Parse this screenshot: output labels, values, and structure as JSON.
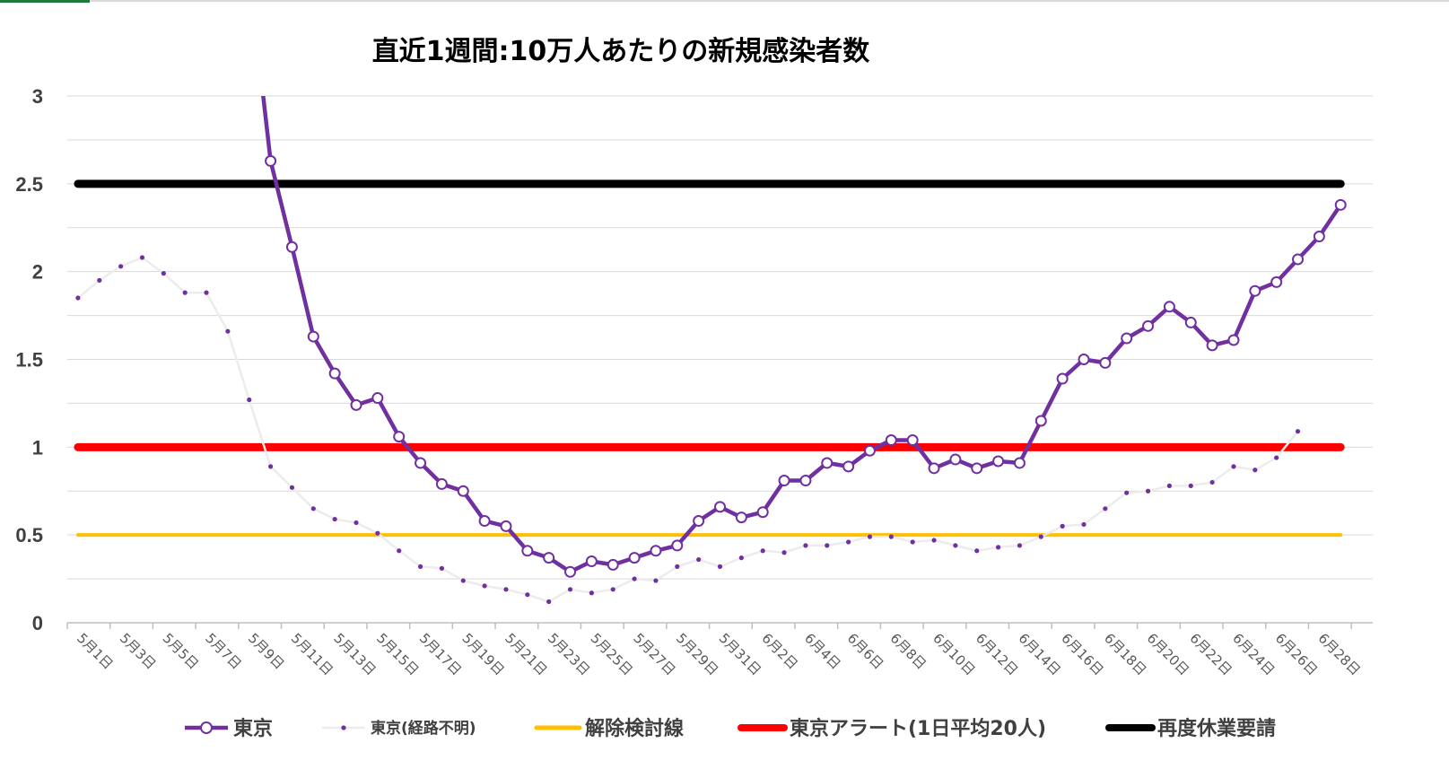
{
  "chart_data": {
    "type": "line",
    "title": "直近1週間:10万人あたりの新規感染者数",
    "xlabel": "",
    "ylabel": "",
    "ylim": [
      0,
      3
    ],
    "yticks": [
      "0",
      "0.5",
      "1",
      "1.5",
      "2",
      "2.5",
      "3"
    ],
    "grid": true,
    "legend_position": "bottom",
    "x": [
      "5月1日",
      "5月2日",
      "5月3日",
      "5月4日",
      "5月5日",
      "5月6日",
      "5月7日",
      "5月8日",
      "5月9日",
      "5月10日",
      "5月11日",
      "5月12日",
      "5月13日",
      "5月14日",
      "5月15日",
      "5月16日",
      "5月17日",
      "5月18日",
      "5月19日",
      "5月20日",
      "5月21日",
      "5月22日",
      "5月23日",
      "5月24日",
      "5月25日",
      "5月26日",
      "5月27日",
      "5月28日",
      "5月29日",
      "5月30日",
      "5月31日",
      "6月1日",
      "6月2日",
      "6月3日",
      "6月4日",
      "6月5日",
      "6月6日",
      "6月7日",
      "6月8日",
      "6月9日",
      "6月10日",
      "6月11日",
      "6月12日",
      "6月13日",
      "6月14日",
      "6月15日",
      "6月16日",
      "6月17日",
      "6月18日",
      "6月19日",
      "6月20日",
      "6月21日",
      "6月22日",
      "6月23日",
      "6月24日",
      "6月25日",
      "6月26日",
      "6月27日",
      "6月28日",
      "6月29日",
      "6月30日"
    ],
    "x_tick_labels": [
      "5月1日",
      "5月3日",
      "5月5日",
      "5月7日",
      "5月9日",
      "5月11日",
      "5月13日",
      "5月15日",
      "5月17日",
      "5月19日",
      "5月21日",
      "5月23日",
      "5月25日",
      "5月27日",
      "5月29日",
      "5月31日",
      "6月2日",
      "6月4日",
      "6月6日",
      "6月8日",
      "6月10日",
      "6月12日",
      "6月14日",
      "6月16日",
      "6月18日",
      "6月20日",
      "6月22日",
      "6月24日",
      "6月26日",
      "6月28日"
    ],
    "series": [
      {
        "name": "東京",
        "color": "#7030a0",
        "values": [
          null,
          null,
          null,
          null,
          null,
          null,
          null,
          null,
          3.7,
          2.63,
          2.14,
          1.63,
          1.42,
          1.24,
          1.28,
          1.06,
          0.91,
          0.79,
          0.75,
          0.58,
          0.55,
          0.41,
          0.37,
          0.29,
          0.35,
          0.33,
          0.37,
          0.41,
          0.44,
          0.58,
          0.66,
          0.6,
          0.63,
          0.81,
          0.81,
          0.91,
          0.89,
          0.98,
          1.04,
          1.04,
          0.88,
          0.93,
          0.88,
          0.92,
          0.91,
          1.15,
          1.39,
          1.5,
          1.48,
          1.62,
          1.69,
          1.8,
          1.71,
          1.58,
          1.61,
          1.89,
          1.94,
          2.07,
          2.2,
          2.38,
          null
        ]
      },
      {
        "name": "東京(経路不明)",
        "color": "#ececec",
        "values": [
          1.85,
          1.95,
          2.03,
          2.08,
          1.99,
          1.88,
          1.88,
          1.66,
          1.27,
          0.89,
          0.77,
          0.65,
          0.59,
          0.57,
          0.51,
          0.41,
          0.32,
          0.31,
          0.24,
          0.21,
          0.19,
          0.16,
          0.12,
          0.19,
          0.17,
          0.19,
          0.25,
          0.24,
          0.32,
          0.36,
          0.32,
          0.37,
          0.41,
          0.4,
          0.44,
          0.44,
          0.46,
          0.49,
          0.49,
          0.46,
          0.47,
          0.44,
          0.41,
          0.43,
          0.44,
          0.49,
          0.55,
          0.56,
          0.65,
          0.74,
          0.75,
          0.78,
          0.78,
          0.8,
          0.89,
          0.87,
          0.94,
          1.09,
          null,
          null,
          null
        ]
      }
    ],
    "reference_lines": [
      {
        "name": "解除検討線",
        "value": 0.5,
        "color": "#ffc000"
      },
      {
        "name": "東京アラート(1日平均20人)",
        "value": 1.0,
        "color": "#ff0000"
      },
      {
        "name": "再度休業要請",
        "value": 2.5,
        "color": "#000000"
      }
    ]
  }
}
